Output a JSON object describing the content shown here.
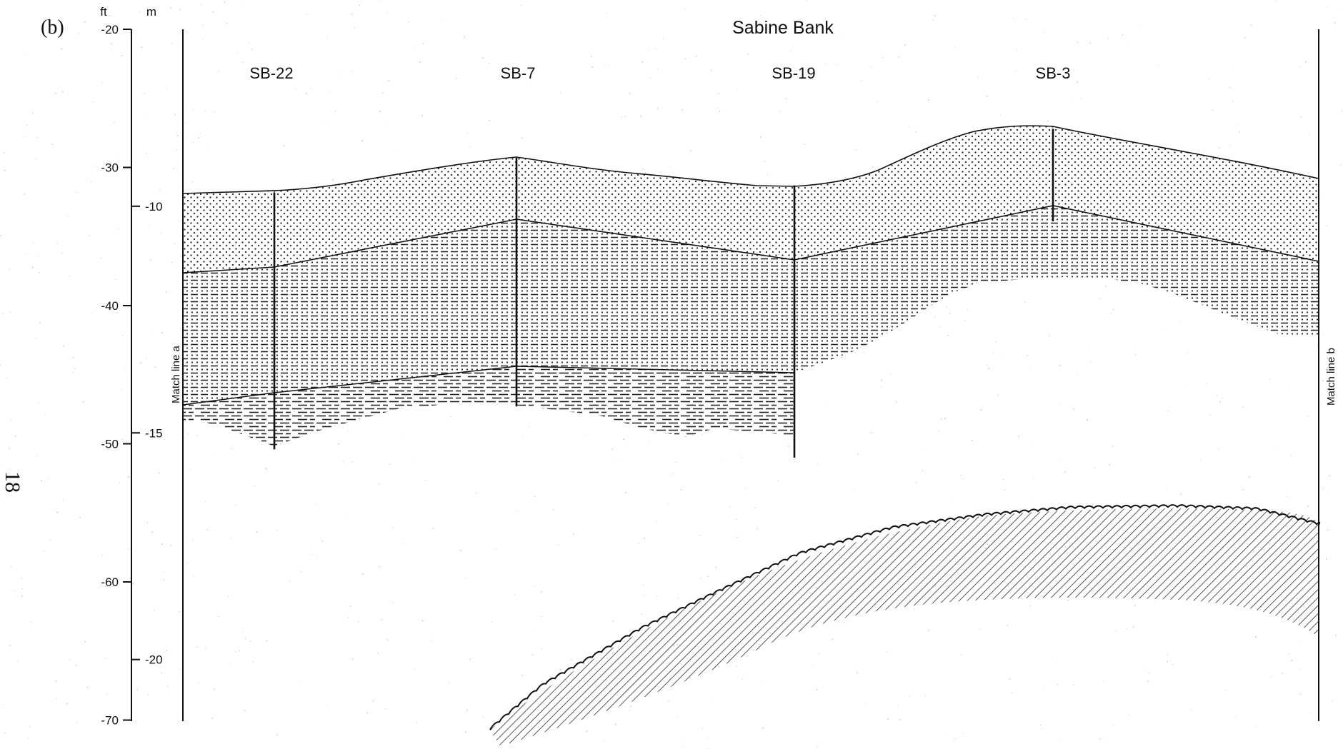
{
  "figure": {
    "panel_label": "(b)",
    "page_number": "18",
    "title": "Sabine Bank",
    "units": {
      "feet": "ft",
      "meters": "m"
    },
    "feet_axis": {
      "ticks": [
        {
          "value": -20,
          "label": "-20"
        },
        {
          "value": -30,
          "label": "-30"
        },
        {
          "value": -40,
          "label": "-40"
        },
        {
          "value": -50,
          "label": "-50"
        },
        {
          "value": -60,
          "label": "-60"
        },
        {
          "value": -70,
          "label": "-70"
        }
      ]
    },
    "meter_axis": {
      "ticks": [
        {
          "value": -10,
          "label": "-10"
        },
        {
          "value": -15,
          "label": "-15"
        },
        {
          "value": -20,
          "label": "-20"
        }
      ]
    },
    "match_lines": {
      "left": "Match line a",
      "right": "Match line b"
    },
    "cores": [
      {
        "id": "SB-22",
        "label": "SB-22",
        "top_ft": -31.8,
        "bottom_ft": -50.4
      },
      {
        "id": "SB-7",
        "label": "SB-7",
        "top_ft": -29.3,
        "bottom_ft": -47.3
      },
      {
        "id": "SB-19",
        "label": "SB-19",
        "top_ft": -31.3,
        "bottom_ft": -51.0
      },
      {
        "id": "SB-3",
        "label": "SB-3",
        "top_ft": -27.2,
        "bottom_ft": -33.9
      }
    ]
  }
}
